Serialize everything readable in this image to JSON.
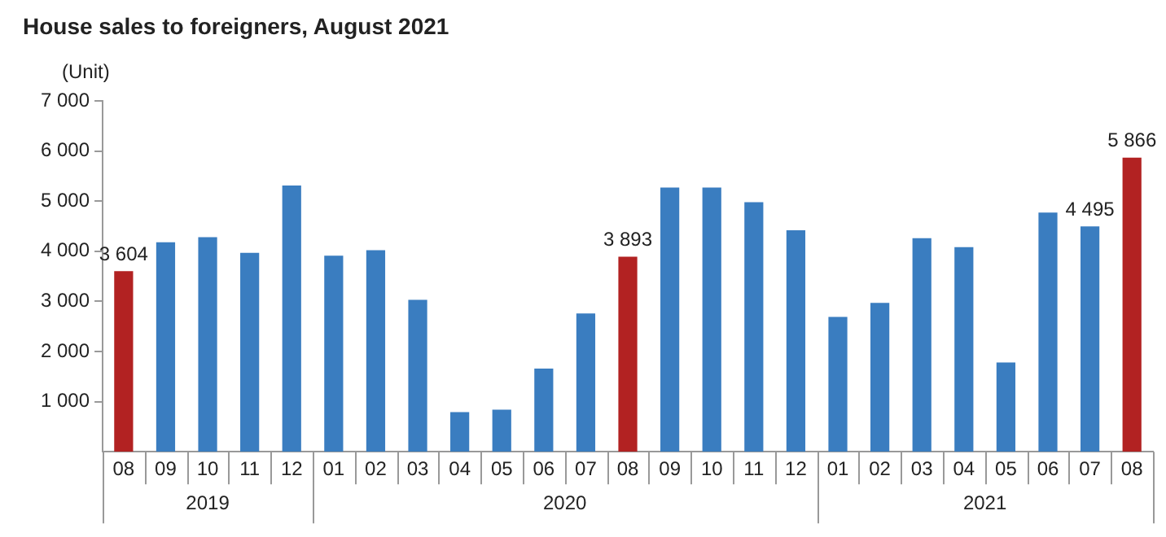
{
  "chart_data": {
    "type": "bar",
    "title": "House sales to foreigners, August 2021",
    "ylabel": "(Unit)",
    "categories": [
      "08",
      "09",
      "10",
      "11",
      "12",
      "01",
      "02",
      "03",
      "04",
      "05",
      "06",
      "07",
      "08",
      "09",
      "10",
      "11",
      "12",
      "01",
      "02",
      "03",
      "04",
      "05",
      "06",
      "07",
      "08"
    ],
    "values": [
      3604,
      4180,
      4280,
      3970,
      5310,
      3910,
      4020,
      3030,
      790,
      840,
      1660,
      2760,
      3893,
      5270,
      5270,
      4980,
      4420,
      2690,
      2970,
      4260,
      4080,
      1780,
      4770,
      4495,
      5866
    ],
    "colors": [
      "#b22222",
      "#3a7dc0",
      "#3a7dc0",
      "#3a7dc0",
      "#3a7dc0",
      "#3a7dc0",
      "#3a7dc0",
      "#3a7dc0",
      "#3a7dc0",
      "#3a7dc0",
      "#3a7dc0",
      "#3a7dc0",
      "#b22222",
      "#3a7dc0",
      "#3a7dc0",
      "#3a7dc0",
      "#3a7dc0",
      "#3a7dc0",
      "#3a7dc0",
      "#3a7dc0",
      "#3a7dc0",
      "#3a7dc0",
      "#3a7dc0",
      "#3a7dc0",
      "#b22222"
    ],
    "value_labels": [
      "3 604",
      null,
      null,
      null,
      null,
      null,
      null,
      null,
      null,
      null,
      null,
      null,
      "3 893",
      null,
      null,
      null,
      null,
      null,
      null,
      null,
      null,
      null,
      null,
      "4 495",
      "5 866"
    ],
    "ylim": [
      0,
      7000
    ],
    "yticks": [
      {
        "value": 1000,
        "label": "1 000"
      },
      {
        "value": 2000,
        "label": "2 000"
      },
      {
        "value": 3000,
        "label": "3 000"
      },
      {
        "value": 4000,
        "label": "4 000"
      },
      {
        "value": 5000,
        "label": "5 000"
      },
      {
        "value": 6000,
        "label": "6 000"
      },
      {
        "value": 7000,
        "label": "7 000"
      }
    ],
    "annotations": [
      "2019",
      "2020",
      "2021"
    ],
    "grid": false,
    "legend": false
  }
}
